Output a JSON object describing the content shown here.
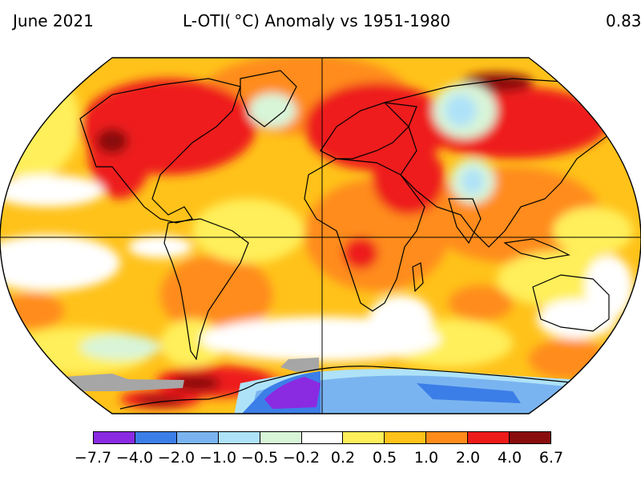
{
  "header": {
    "date": "June 2021",
    "title": "L-OTI( °C) Anomaly vs 1951-1980",
    "global_mean": "0.83"
  },
  "legend": {
    "colors": [
      "#8a2be2",
      "#3c7ee8",
      "#7ab4f0",
      "#aee2f8",
      "#d8f5d8",
      "#ffffff",
      "#ffef5a",
      "#ffc21a",
      "#ff8c1a",
      "#ee1b1b",
      "#8a0d0d"
    ],
    "ticks": [
      "−7.7",
      "−4.0",
      "−2.0",
      "−1.0",
      "−0.5",
      "−0.2",
      "0.2",
      "0.5",
      "1.0",
      "2.0",
      "4.0",
      "6.7"
    ]
  },
  "map": {
    "projection": "Robinson",
    "ocean_base_color": "#ffc21a",
    "land_outline_color": "#000000",
    "grid_color": "#000000",
    "missing_data_color": "#a6a6a6"
  }
}
